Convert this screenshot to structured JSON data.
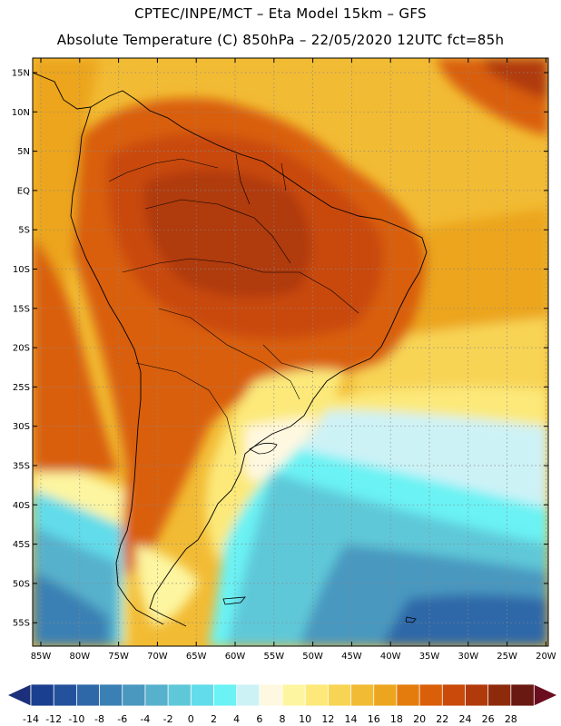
{
  "title": {
    "line1": "CPTEC/INPE/MCT –  Eta Model 15km – GFS",
    "line2": "Absolute Temperature (C) 850hPa – 22/05/2020 12UTC fct=85h"
  },
  "map": {
    "lat_labels": [
      "15N",
      "10N",
      "5N",
      "EQ",
      "5S",
      "10S",
      "15S",
      "20S",
      "25S",
      "30S",
      "35S",
      "40S",
      "45S",
      "50S",
      "55S"
    ],
    "lon_labels": [
      "85W",
      "80W",
      "75W",
      "70W",
      "65W",
      "60W",
      "55W",
      "50W",
      "45W",
      "40W",
      "35W",
      "30W",
      "25W",
      "20W"
    ],
    "grid": "dotted"
  },
  "colorbar": {
    "labels": [
      "-14",
      "-12",
      "-10",
      "-8",
      "-6",
      "-4",
      "-2",
      "0",
      "2",
      "4",
      "6",
      "8",
      "10",
      "12",
      "14",
      "16",
      "18",
      "20",
      "22",
      "24",
      "26",
      "28"
    ],
    "colors": [
      "#1a3f8f",
      "#23519b",
      "#2f68a8",
      "#3b80b4",
      "#4a98c0",
      "#57b1cc",
      "#5fc8d8",
      "#62dcea",
      "#6af2f4",
      "#cdf2f6",
      "#fff8e0",
      "#fdf5a0",
      "#fce97a",
      "#f8d454",
      "#f2bb34",
      "#eca51e",
      "#e37c0d",
      "#d95f08",
      "#c94a0a",
      "#b03a0a",
      "#8e2a0c",
      "#6a1812"
    ],
    "left_arrow_color": "#1c2f7a",
    "right_arrow_color": "#6a0d1f"
  }
}
